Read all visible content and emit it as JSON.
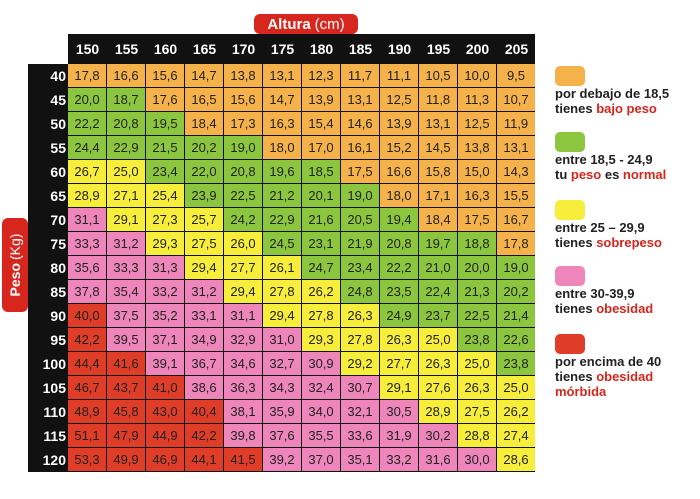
{
  "axes": {
    "x_label": "Altura",
    "x_unit": "(cm)",
    "y_label": "Peso",
    "y_unit": "(Kg)"
  },
  "heights": [
    "150",
    "155",
    "160",
    "165",
    "170",
    "175",
    "180",
    "185",
    "190",
    "195",
    "200",
    "205"
  ],
  "weights": [
    "40",
    "45",
    "50",
    "55",
    "60",
    "65",
    "70",
    "75",
    "80",
    "85",
    "90",
    "95",
    "100",
    "105",
    "110",
    "115",
    "120"
  ],
  "rows": [
    [
      [
        "17,8",
        "u"
      ],
      [
        "16,6",
        "u"
      ],
      [
        "15,6",
        "u"
      ],
      [
        "14,7",
        "u"
      ],
      [
        "13,8",
        "u"
      ],
      [
        "13,1",
        "u"
      ],
      [
        "12,3",
        "u"
      ],
      [
        "11,7",
        "u"
      ],
      [
        "11,1",
        "u"
      ],
      [
        "10,5",
        "u"
      ],
      [
        "10,0",
        "u"
      ],
      [
        "9,5",
        "u"
      ]
    ],
    [
      [
        "20,0",
        "n"
      ],
      [
        "18,7",
        "n"
      ],
      [
        "17,6",
        "u"
      ],
      [
        "16,5",
        "u"
      ],
      [
        "15,6",
        "u"
      ],
      [
        "14,7",
        "u"
      ],
      [
        "13,9",
        "u"
      ],
      [
        "13,1",
        "u"
      ],
      [
        "12,5",
        "u"
      ],
      [
        "11,8",
        "u"
      ],
      [
        "11,3",
        "u"
      ],
      [
        "10,7",
        "u"
      ]
    ],
    [
      [
        "22,2",
        "n"
      ],
      [
        "20,8",
        "n"
      ],
      [
        "19,5",
        "n"
      ],
      [
        "18,4",
        "u"
      ],
      [
        "17,3",
        "u"
      ],
      [
        "16,3",
        "u"
      ],
      [
        "15,4",
        "u"
      ],
      [
        "14,6",
        "u"
      ],
      [
        "13,9",
        "u"
      ],
      [
        "13,1",
        "u"
      ],
      [
        "12,5",
        "u"
      ],
      [
        "11,9",
        "u"
      ]
    ],
    [
      [
        "24,4",
        "n"
      ],
      [
        "22,9",
        "n"
      ],
      [
        "21,5",
        "n"
      ],
      [
        "20,2",
        "n"
      ],
      [
        "19,0",
        "n"
      ],
      [
        "18,0",
        "u"
      ],
      [
        "17,0",
        "u"
      ],
      [
        "16,1",
        "u"
      ],
      [
        "15,2",
        "u"
      ],
      [
        "14,5",
        "u"
      ],
      [
        "13,8",
        "u"
      ],
      [
        "13,1",
        "u"
      ]
    ],
    [
      [
        "26,7",
        "y"
      ],
      [
        "25,0",
        "y"
      ],
      [
        "23,4",
        "n"
      ],
      [
        "22,0",
        "n"
      ],
      [
        "20,8",
        "n"
      ],
      [
        "19,6",
        "n"
      ],
      [
        "18,5",
        "n"
      ],
      [
        "17,5",
        "u"
      ],
      [
        "16,6",
        "u"
      ],
      [
        "15,8",
        "u"
      ],
      [
        "15,0",
        "u"
      ],
      [
        "14,3",
        "u"
      ]
    ],
    [
      [
        "28,9",
        "y"
      ],
      [
        "27,1",
        "y"
      ],
      [
        "25,4",
        "y"
      ],
      [
        "23,9",
        "n"
      ],
      [
        "22,5",
        "n"
      ],
      [
        "21,2",
        "n"
      ],
      [
        "20,1",
        "n"
      ],
      [
        "19,0",
        "n"
      ],
      [
        "18,0",
        "u"
      ],
      [
        "17,1",
        "u"
      ],
      [
        "16,3",
        "u"
      ],
      [
        "15,5",
        "u"
      ]
    ],
    [
      [
        "31,1",
        "p"
      ],
      [
        "29,1",
        "y"
      ],
      [
        "27,3",
        "y"
      ],
      [
        "25,7",
        "y"
      ],
      [
        "24,2",
        "n"
      ],
      [
        "22,9",
        "n"
      ],
      [
        "21,6",
        "n"
      ],
      [
        "20,5",
        "n"
      ],
      [
        "19,4",
        "n"
      ],
      [
        "18,4",
        "u"
      ],
      [
        "17,5",
        "u"
      ],
      [
        "16,7",
        "u"
      ]
    ],
    [
      [
        "33,3",
        "p"
      ],
      [
        "31,2",
        "p"
      ],
      [
        "29,3",
        "y"
      ],
      [
        "27,5",
        "y"
      ],
      [
        "26,0",
        "y"
      ],
      [
        "24,5",
        "n"
      ],
      [
        "23,1",
        "n"
      ],
      [
        "21,9",
        "n"
      ],
      [
        "20,8",
        "n"
      ],
      [
        "19,7",
        "n"
      ],
      [
        "18,8",
        "n"
      ],
      [
        "17,8",
        "u"
      ]
    ],
    [
      [
        "35,6",
        "p"
      ],
      [
        "33,3",
        "p"
      ],
      [
        "31,3",
        "p"
      ],
      [
        "29,4",
        "y"
      ],
      [
        "27,7",
        "y"
      ],
      [
        "26,1",
        "y"
      ],
      [
        "24,7",
        "n"
      ],
      [
        "23,4",
        "n"
      ],
      [
        "22,2",
        "n"
      ],
      [
        "21,0",
        "n"
      ],
      [
        "20,0",
        "n"
      ],
      [
        "19,0",
        "n"
      ]
    ],
    [
      [
        "37,8",
        "p"
      ],
      [
        "35,4",
        "p"
      ],
      [
        "33,2",
        "p"
      ],
      [
        "31,2",
        "p"
      ],
      [
        "29,4",
        "y"
      ],
      [
        "27,8",
        "y"
      ],
      [
        "26,2",
        "y"
      ],
      [
        "24,8",
        "n"
      ],
      [
        "23,5",
        "n"
      ],
      [
        "22,4",
        "n"
      ],
      [
        "21,3",
        "n"
      ],
      [
        "20,2",
        "n"
      ]
    ],
    [
      [
        "40,0",
        "r"
      ],
      [
        "37,5",
        "p"
      ],
      [
        "35,2",
        "p"
      ],
      [
        "33,1",
        "p"
      ],
      [
        "31,1",
        "p"
      ],
      [
        "29,4",
        "y"
      ],
      [
        "27,8",
        "y"
      ],
      [
        "26,3",
        "y"
      ],
      [
        "24,9",
        "n"
      ],
      [
        "23,7",
        "n"
      ],
      [
        "22,5",
        "n"
      ],
      [
        "21,4",
        "n"
      ]
    ],
    [
      [
        "42,2",
        "r"
      ],
      [
        "39,5",
        "p"
      ],
      [
        "37,1",
        "p"
      ],
      [
        "34,9",
        "p"
      ],
      [
        "32,9",
        "p"
      ],
      [
        "31,0",
        "p"
      ],
      [
        "29,3",
        "y"
      ],
      [
        "27,8",
        "y"
      ],
      [
        "26,3",
        "y"
      ],
      [
        "25,0",
        "y"
      ],
      [
        "23,8",
        "n"
      ],
      [
        "22,6",
        "n"
      ]
    ],
    [
      [
        "44,4",
        "r"
      ],
      [
        "41,6",
        "r"
      ],
      [
        "39,1",
        "p"
      ],
      [
        "36,7",
        "p"
      ],
      [
        "34,6",
        "p"
      ],
      [
        "32,7",
        "p"
      ],
      [
        "30,9",
        "p"
      ],
      [
        "29,2",
        "y"
      ],
      [
        "27,7",
        "y"
      ],
      [
        "26,3",
        "y"
      ],
      [
        "25,0",
        "y"
      ],
      [
        "23,8",
        "n"
      ]
    ],
    [
      [
        "46,7",
        "r"
      ],
      [
        "43,7",
        "r"
      ],
      [
        "41,0",
        "r"
      ],
      [
        "38,6",
        "p"
      ],
      [
        "36,3",
        "p"
      ],
      [
        "34,3",
        "p"
      ],
      [
        "32,4",
        "p"
      ],
      [
        "30,7",
        "p"
      ],
      [
        "29,1",
        "y"
      ],
      [
        "27,6",
        "y"
      ],
      [
        "26,3",
        "y"
      ],
      [
        "25,0",
        "y"
      ]
    ],
    [
      [
        "48,9",
        "r"
      ],
      [
        "45,8",
        "r"
      ],
      [
        "43,0",
        "r"
      ],
      [
        "40,4",
        "r"
      ],
      [
        "38,1",
        "p"
      ],
      [
        "35,9",
        "p"
      ],
      [
        "34,0",
        "p"
      ],
      [
        "32,1",
        "p"
      ],
      [
        "30,5",
        "p"
      ],
      [
        "28,9",
        "y"
      ],
      [
        "27,5",
        "y"
      ],
      [
        "26,2",
        "y"
      ]
    ],
    [
      [
        "51,1",
        "r"
      ],
      [
        "47,9",
        "r"
      ],
      [
        "44,9",
        "r"
      ],
      [
        "42,2",
        "r"
      ],
      [
        "39,8",
        "p"
      ],
      [
        "37,6",
        "p"
      ],
      [
        "35,5",
        "p"
      ],
      [
        "33,6",
        "p"
      ],
      [
        "31,9",
        "p"
      ],
      [
        "30,2",
        "p"
      ],
      [
        "28,8",
        "y"
      ],
      [
        "27,4",
        "y"
      ]
    ],
    [
      [
        "53,3",
        "r"
      ],
      [
        "49,9",
        "r"
      ],
      [
        "46,9",
        "r"
      ],
      [
        "44,1",
        "r"
      ],
      [
        "41,5",
        "r"
      ],
      [
        "39,2",
        "p"
      ],
      [
        "37,0",
        "p"
      ],
      [
        "35,1",
        "p"
      ],
      [
        "33,2",
        "p"
      ],
      [
        "31,6",
        "p"
      ],
      [
        "30,0",
        "p"
      ],
      [
        "28,6",
        "y"
      ]
    ]
  ],
  "legend": [
    {
      "color": "#f6b24a",
      "line1": "por debajo de 18,5",
      "line2_pre": "tienes ",
      "line2_hl": "bajo peso",
      "line2_post": "",
      "line3_hl": ""
    },
    {
      "color": "#8cc63e",
      "line1": "entre 18,5 - 24,9",
      "line2_pre": "tu ",
      "line2_hl": "peso",
      "line2_post": " es ",
      "line2_hl2": "normal",
      "line3_hl": ""
    },
    {
      "color": "#f7ee3c",
      "line1": "entre 25 – 29,9",
      "line2_pre": "tienes ",
      "line2_hl": "sobrepeso",
      "line2_post": "",
      "line3_hl": ""
    },
    {
      "color": "#ef86bb",
      "line1": "entre 30-39,9",
      "line2_pre": "tienes ",
      "line2_hl": "obesidad",
      "line2_post": "",
      "line3_hl": ""
    },
    {
      "color": "#df3d28",
      "line1": "por encima de 40",
      "line2_pre": "tienes ",
      "line2_hl": "obesidad",
      "line2_post": "",
      "line3_hl": "mórbida"
    }
  ]
}
